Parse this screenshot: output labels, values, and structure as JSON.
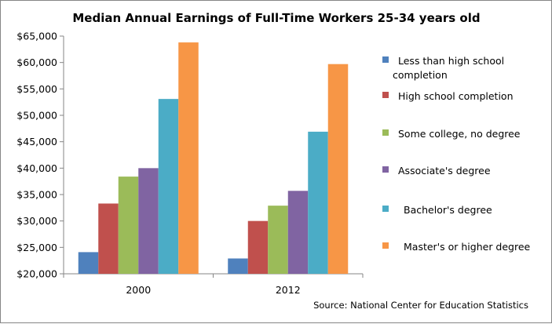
{
  "chart_data": {
    "type": "bar",
    "title": "Median Annual Earnings of Full-Time Workers 25-34 years old",
    "categories": [
      "2000",
      "2012"
    ],
    "series": [
      {
        "name": "Less than high school completion",
        "color": "#4F81BD",
        "values": [
          24100,
          22900
        ]
      },
      {
        "name": "High school completion",
        "color": "#C0504D",
        "values": [
          33300,
          30000
        ]
      },
      {
        "name": "Some college, no degree",
        "color": "#9BBB59",
        "values": [
          38400,
          32900
        ]
      },
      {
        "name": "Associate's degree",
        "color": "#8064A2",
        "values": [
          40000,
          35700
        ]
      },
      {
        "name": "Bachelor's degree",
        "color": "#4BACC6",
        "values": [
          53100,
          46900
        ]
      },
      {
        "name": "Master's or higher degree",
        "color": "#F79646",
        "values": [
          63800,
          59700
        ]
      }
    ],
    "y_ticks": [
      "$20,000",
      "$25,000",
      "$30,000",
      "$35,000",
      "$40,000",
      "$45,000",
      "$50,000",
      "$55,000",
      "$60,000",
      "$65,000"
    ],
    "ylim": [
      20000,
      65000
    ],
    "xlabel": "",
    "ylabel": "",
    "grid": false,
    "legend_position": "right",
    "legend_labels": [
      [
        "Less than high school",
        "completion"
      ],
      [
        "High school completion"
      ],
      [
        "Some college, no degree"
      ],
      [
        "Associate's degree"
      ],
      [
        "Bachelor's degree"
      ],
      [
        "Master's or higher degree"
      ]
    ],
    "source": "Source:  National Center for Education Statistics"
  }
}
